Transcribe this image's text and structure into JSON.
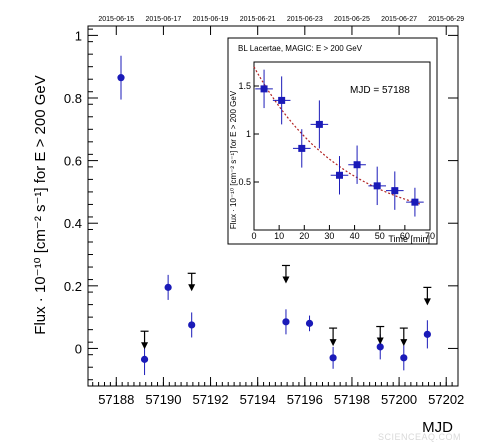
{
  "chart_data": [
    {
      "type": "scatter",
      "title": "",
      "xlabel": "MJD",
      "ylabel": "Flux · 10⁻¹⁰ [cm⁻² s⁻¹] for E > 200 GeV",
      "xlim": [
        57186.8,
        57202.5
      ],
      "ylim": [
        -0.12,
        1.03
      ],
      "x_ticks": [
        57188,
        57190,
        57192,
        57194,
        57196,
        57198,
        57200,
        57202
      ],
      "x_tick_labels": [
        "57188",
        "57190",
        "57192",
        "57194",
        "57196",
        "57198",
        "57200",
        "57202"
      ],
      "y_ticks": [
        0,
        0.2,
        0.4,
        0.6,
        0.8,
        1
      ],
      "y_tick_labels": [
        "0",
        "0.2",
        "0.4",
        "0.6",
        "0.8",
        "1"
      ],
      "top_axis_dates": [
        {
          "mjd": 57188,
          "label": "2015-06-15"
        },
        {
          "mjd": 57190,
          "label": "2015-06-17"
        },
        {
          "mjd": 57192,
          "label": "2015-06-19"
        },
        {
          "mjd": 57194,
          "label": "2015-06-21"
        },
        {
          "mjd": 57196,
          "label": "2015-06-23"
        },
        {
          "mjd": 57198,
          "label": "2015-06-25"
        },
        {
          "mjd": 57200,
          "label": "2015-06-27"
        },
        {
          "mjd": 57202,
          "label": "2015-06-29"
        }
      ],
      "points": [
        {
          "x": 57188.2,
          "y": 0.865,
          "err": 0.07
        },
        {
          "x": 57189.2,
          "y": -0.035,
          "err": 0.05
        },
        {
          "x": 57190.2,
          "y": 0.195,
          "err": 0.04
        },
        {
          "x": 57191.2,
          "y": 0.075,
          "err": 0.04
        },
        {
          "x": 57195.2,
          "y": 0.085,
          "err": 0.04
        },
        {
          "x": 57196.2,
          "y": 0.08,
          "err": 0.025
        },
        {
          "x": 57197.2,
          "y": -0.03,
          "err": 0.035
        },
        {
          "x": 57199.2,
          "y": 0.005,
          "err": 0.04
        },
        {
          "x": 57200.2,
          "y": -0.03,
          "err": 0.04
        },
        {
          "x": 57201.2,
          "y": 0.045,
          "err": 0.045
        }
      ],
      "upper_limits": [
        {
          "x": 57189.2,
          "y": 0.055
        },
        {
          "x": 57191.2,
          "y": 0.24
        },
        {
          "x": 57195.2,
          "y": 0.265
        },
        {
          "x": 57197.2,
          "y": 0.065
        },
        {
          "x": 57199.2,
          "y": 0.07
        },
        {
          "x": 57200.2,
          "y": 0.065
        },
        {
          "x": 57201.2,
          "y": 0.195
        }
      ],
      "point_color": "#1a1ab8",
      "limit_color": "#000000",
      "grid": false
    },
    {
      "type": "scatter",
      "title": "BL Lacertae, MAGIC: E > 200 GeV",
      "annotation": "MJD = 57188",
      "xlabel": "Time [min]",
      "ylabel": "Flux · 10⁻¹⁰ [cm⁻² s⁻¹] for E > 200 GeV",
      "xlim": [
        0,
        70
      ],
      "ylim": [
        0,
        1.75
      ],
      "x_ticks": [
        0,
        10,
        20,
        30,
        40,
        50,
        60,
        70
      ],
      "x_tick_labels": [
        "0",
        "10",
        "20",
        "30",
        "40",
        "50",
        "60",
        "70"
      ],
      "y_ticks": [
        0.5,
        1,
        1.5
      ],
      "y_tick_labels": [
        "0.5",
        "1",
        "1.5"
      ],
      "points": [
        {
          "x": 4,
          "y": 1.47,
          "xerr": 3.5,
          "yerr": 0.2
        },
        {
          "x": 11,
          "y": 1.35,
          "xerr": 3.5,
          "yerr": 0.25
        },
        {
          "x": 19,
          "y": 0.85,
          "xerr": 3.5,
          "yerr": 0.2
        },
        {
          "x": 26,
          "y": 1.1,
          "xerr": 3.5,
          "yerr": 0.25
        },
        {
          "x": 34,
          "y": 0.57,
          "xerr": 3.5,
          "yerr": 0.2
        },
        {
          "x": 41,
          "y": 0.68,
          "xerr": 3.5,
          "yerr": 0.2
        },
        {
          "x": 49,
          "y": 0.46,
          "xerr": 3.5,
          "yerr": 0.2
        },
        {
          "x": 56,
          "y": 0.41,
          "xerr": 3.5,
          "yerr": 0.2
        },
        {
          "x": 64,
          "y": 0.29,
          "xerr": 3.5,
          "yerr": 0.15
        }
      ],
      "fit": {
        "type": "exponential",
        "a": 1.7,
        "tau": 36
      },
      "point_color": "#1a1ab8",
      "fit_color": "#b22222"
    }
  ],
  "watermark": "SCIENCEAQ.COM"
}
